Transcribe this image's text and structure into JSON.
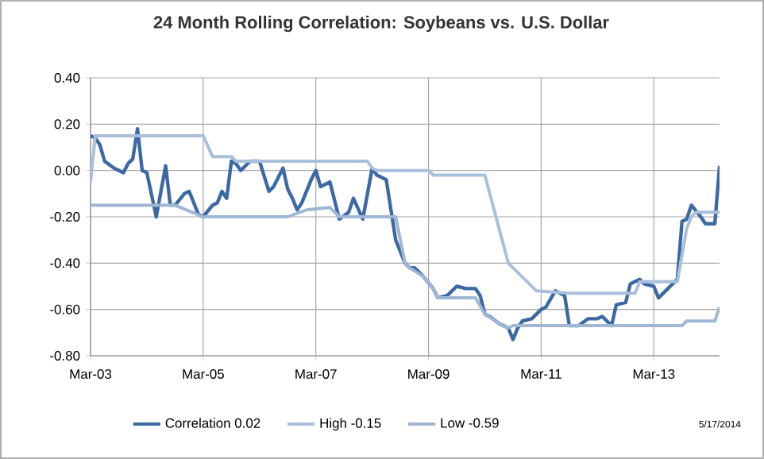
{
  "chart_data": {
    "type": "line",
    "title": "24 Month Rolling Correlation:  Soybeans vs. U.S. Dollar",
    "xlim": [
      "2003-03",
      "2014-05"
    ],
    "xticks": [
      {
        "value": "2003-03",
        "label": "Mar-03"
      },
      {
        "value": "2005-03",
        "label": "Mar-05"
      },
      {
        "value": "2007-03",
        "label": "Mar-07"
      },
      {
        "value": "2009-03",
        "label": "Mar-09"
      },
      {
        "value": "2011-03",
        "label": "Mar-11"
      },
      {
        "value": "2013-03",
        "label": "Mar-13"
      }
    ],
    "ylim": [
      -0.8,
      0.4
    ],
    "yticks": [
      {
        "value": -0.8,
        "label": "-0.80"
      },
      {
        "value": -0.6,
        "label": "-0.60"
      },
      {
        "value": -0.4,
        "label": "-0.40"
      },
      {
        "value": -0.2,
        "label": "-0.20"
      },
      {
        "value": 0,
        "label": "0.00"
      },
      {
        "value": 0.2,
        "label": "0.20"
      },
      {
        "value": 0.4,
        "label": "0.40"
      }
    ],
    "grid": true,
    "legend": "bottom",
    "marker": "none",
    "line_style": "solid",
    "annotations": [
      "5/17/2014"
    ],
    "series": [
      {
        "name": "Correlation 0.02",
        "color": "#3c68a4",
        "x": [
          "2003-03",
          "2003-04",
          "2003-05",
          "2003-06",
          "2003-08",
          "2003-10",
          "2003-11",
          "2003-12",
          "2004-01",
          "2004-02",
          "2004-03",
          "2004-05",
          "2004-07",
          "2004-08",
          "2004-09",
          "2004-11",
          "2004-12",
          "2005-02",
          "2005-03",
          "2005-05",
          "2005-06",
          "2005-07",
          "2005-08",
          "2005-09",
          "2005-10",
          "2005-11",
          "2006-01",
          "2006-03",
          "2006-05",
          "2006-06",
          "2006-08",
          "2006-09",
          "2006-10",
          "2006-11",
          "2006-12",
          "2007-02",
          "2007-03",
          "2007-04",
          "2007-06",
          "2007-08",
          "2007-10",
          "2007-11",
          "2008-01",
          "2008-03",
          "2008-04",
          "2008-06",
          "2008-07",
          "2008-08",
          "2008-10",
          "2008-11",
          "2008-12",
          "2009-02",
          "2009-04",
          "2009-05",
          "2009-07",
          "2009-09",
          "2009-11",
          "2010-01",
          "2010-02",
          "2010-03",
          "2010-04",
          "2010-06",
          "2010-08",
          "2010-09",
          "2010-10",
          "2010-11",
          "2011-01",
          "2011-03",
          "2011-04",
          "2011-06",
          "2011-08",
          "2011-09",
          "2011-11",
          "2012-01",
          "2012-03",
          "2012-04",
          "2012-06",
          "2012-07",
          "2012-09",
          "2012-10",
          "2012-12",
          "2013-01",
          "2013-03",
          "2013-04",
          "2013-06",
          "2013-08",
          "2013-09",
          "2013-10",
          "2013-11",
          "2014-01",
          "2014-02",
          "2014-04",
          "2014-05"
        ],
        "values": [
          0.15,
          0.14,
          0.11,
          0.04,
          0.01,
          -0.01,
          0.03,
          0.05,
          0.18,
          0.0,
          -0.01,
          -0.2,
          0.02,
          -0.15,
          -0.15,
          -0.1,
          -0.09,
          -0.19,
          -0.2,
          -0.15,
          -0.14,
          -0.09,
          -0.12,
          0.04,
          0.03,
          0.0,
          0.04,
          0.04,
          -0.09,
          -0.07,
          0.01,
          -0.08,
          -0.12,
          -0.17,
          -0.14,
          -0.04,
          0.0,
          -0.07,
          -0.05,
          -0.21,
          -0.18,
          -0.12,
          -0.21,
          0.01,
          -0.02,
          -0.04,
          -0.17,
          -0.3,
          -0.4,
          -0.42,
          -0.42,
          -0.46,
          -0.51,
          -0.55,
          -0.54,
          -0.5,
          -0.51,
          -0.51,
          -0.54,
          -0.62,
          -0.63,
          -0.66,
          -0.68,
          -0.73,
          -0.68,
          -0.65,
          -0.64,
          -0.6,
          -0.59,
          -0.52,
          -0.54,
          -0.67,
          -0.67,
          -0.64,
          -0.64,
          -0.63,
          -0.67,
          -0.58,
          -0.57,
          -0.49,
          -0.47,
          -0.49,
          -0.5,
          -0.55,
          -0.51,
          -0.47,
          -0.22,
          -0.21,
          -0.15,
          -0.2,
          -0.23,
          -0.23,
          0.02
        ]
      },
      {
        "name": "High -0.15",
        "color": "#a9bfdc",
        "x": [
          "2003-03",
          "2003-04",
          "2005-03",
          "2005-05",
          "2005-09",
          "2005-10",
          "2008-02",
          "2008-03",
          "2008-04",
          "2009-03",
          "2009-04",
          "2010-03",
          "2010-08",
          "2010-11",
          "2011-02",
          "2011-09",
          "2012-11",
          "2012-12",
          "2013-08",
          "2013-10",
          "2013-11",
          "2013-12",
          "2014-05"
        ],
        "values": [
          -0.05,
          0.15,
          0.15,
          0.06,
          0.06,
          0.04,
          0.04,
          0.01,
          0.0,
          0.0,
          -0.02,
          -0.02,
          -0.4,
          -0.46,
          -0.52,
          -0.53,
          -0.53,
          -0.48,
          -0.48,
          -0.25,
          -0.2,
          -0.18,
          -0.18
        ]
      },
      {
        "name": "Low -0.59",
        "color": "#9fb6d5",
        "x": [
          "2003-03",
          "2004-09",
          "2005-03",
          "2006-09",
          "2007-01",
          "2007-06",
          "2007-08",
          "2008-08",
          "2008-10",
          "2008-11",
          "2009-02",
          "2009-04",
          "2009-05",
          "2010-01",
          "2010-03",
          "2010-06",
          "2010-08",
          "2010-09",
          "2013-09",
          "2013-10",
          "2014-04",
          "2014-05"
        ],
        "values": [
          -0.15,
          -0.15,
          -0.2,
          -0.2,
          -0.17,
          -0.16,
          -0.2,
          -0.2,
          -0.4,
          -0.42,
          -0.46,
          -0.51,
          -0.55,
          -0.55,
          -0.62,
          -0.66,
          -0.68,
          -0.67,
          -0.67,
          -0.65,
          -0.65,
          -0.59
        ]
      }
    ]
  }
}
